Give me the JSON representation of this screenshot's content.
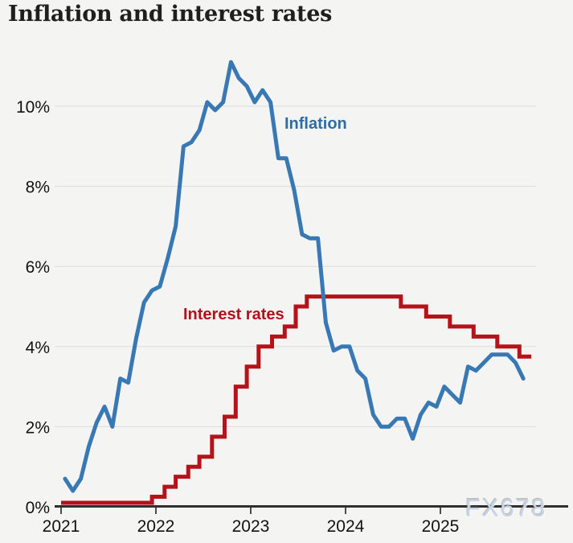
{
  "title": "Inflation and interest rates",
  "watermark": "FX678",
  "colors": {
    "background": "#f4f4f2",
    "gridline": "#dbdbd9",
    "axis": "#2f2f2f",
    "inflation_line": "#3878b4",
    "inflation_label": "#2e6da4",
    "interest_line": "#b51219",
    "interest_label": "#b0121c",
    "watermark": "#c8d5e9"
  },
  "chart_data": {
    "type": "line",
    "title": "Inflation and interest rates",
    "grid": true,
    "x_axis": {
      "tick_labels": [
        "2021",
        "2022",
        "2023",
        "2024",
        "2025"
      ],
      "tick_months": [
        0,
        12,
        24,
        36,
        48
      ],
      "unit": "year"
    },
    "y_axis": {
      "tick_labels": [
        "0%",
        "2%",
        "4%",
        "6%",
        "8%",
        "10%"
      ],
      "tick_values": [
        0,
        2,
        4,
        6,
        8,
        10
      ],
      "min": 0,
      "max": 11.5,
      "unit": "percent"
    },
    "series": [
      {
        "name": "Inflation",
        "type": "line",
        "color": "#3878b4",
        "start": "Jan 2021",
        "frequency": "monthly",
        "values": [
          0.7,
          0.4,
          0.7,
          1.5,
          2.1,
          2.5,
          2.0,
          3.2,
          3.1,
          4.2,
          5.1,
          5.4,
          5.5,
          6.2,
          7.0,
          9.0,
          9.1,
          9.4,
          10.1,
          9.9,
          10.1,
          11.1,
          10.7,
          10.5,
          10.1,
          10.4,
          10.1,
          8.7,
          8.7,
          7.9,
          6.8,
          6.7,
          6.7,
          4.6,
          3.9,
          4.0,
          4.0,
          3.4,
          3.2,
          2.3,
          2.0,
          2.0,
          2.2,
          2.2,
          1.7,
          2.3,
          2.6,
          2.5,
          3.0,
          2.8,
          2.6,
          3.5,
          3.4,
          3.6,
          3.8,
          3.8,
          3.8,
          3.6,
          3.2
        ]
      },
      {
        "name": "Interest rates",
        "type": "step",
        "color": "#b51219",
        "steps": [
          {
            "month": 0.0,
            "rate": 0.1
          },
          {
            "month": 11.5,
            "rate": 0.25
          },
          {
            "month": 13.1,
            "rate": 0.5
          },
          {
            "month": 14.5,
            "rate": 0.75
          },
          {
            "month": 16.1,
            "rate": 1.0
          },
          {
            "month": 17.5,
            "rate": 1.25
          },
          {
            "month": 19.1,
            "rate": 1.75
          },
          {
            "month": 20.7,
            "rate": 2.25
          },
          {
            "month": 22.1,
            "rate": 3.0
          },
          {
            "month": 23.5,
            "rate": 3.5
          },
          {
            "month": 25.0,
            "rate": 4.0
          },
          {
            "month": 26.7,
            "rate": 4.25
          },
          {
            "month": 28.3,
            "rate": 4.5
          },
          {
            "month": 29.7,
            "rate": 5.0
          },
          {
            "month": 31.1,
            "rate": 5.25
          },
          {
            "month": 43.0,
            "rate": 5.0
          },
          {
            "month": 46.2,
            "rate": 4.75
          },
          {
            "month": 49.2,
            "rate": 4.5
          },
          {
            "month": 52.2,
            "rate": 4.25
          },
          {
            "month": 55.2,
            "rate": 4.0
          },
          {
            "month": 58.0,
            "rate": 3.75
          }
        ],
        "end_month": 59.5
      }
    ]
  }
}
